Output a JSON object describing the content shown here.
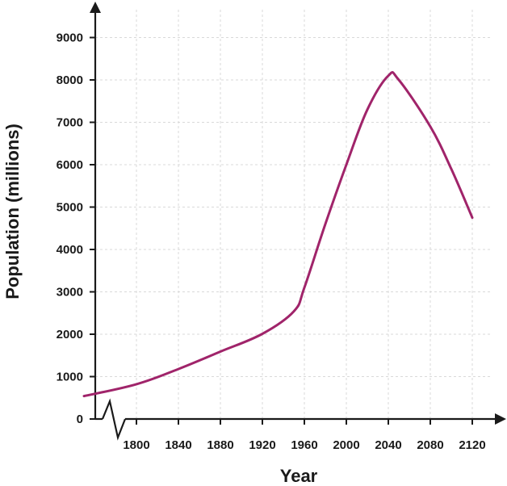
{
  "chart_data": {
    "type": "line",
    "xlabel": "Year",
    "ylabel": "Population (millions)",
    "xlim": [
      1750,
      2120
    ],
    "ylim": [
      0,
      9000
    ],
    "x_ticks": [
      1800,
      1840,
      1880,
      1920,
      1960,
      2000,
      2040,
      2080,
      2120
    ],
    "y_ticks": [
      0,
      1000,
      2000,
      3000,
      4000,
      5000,
      6000,
      7000,
      8000,
      9000
    ],
    "grid": true,
    "axis_break": "x",
    "series": [
      {
        "color": "#a0246a",
        "x": [
          1750,
          1800,
          1840,
          1880,
          1920,
          1950,
          1960,
          1980,
          2000,
          2020,
          2040,
          2050,
          2080,
          2100,
          2120
        ],
        "y": [
          540,
          820,
          1180,
          1590,
          2010,
          2540,
          3100,
          4600,
          6000,
          7300,
          8100,
          8000,
          6900,
          5900,
          4750
        ]
      }
    ]
  }
}
